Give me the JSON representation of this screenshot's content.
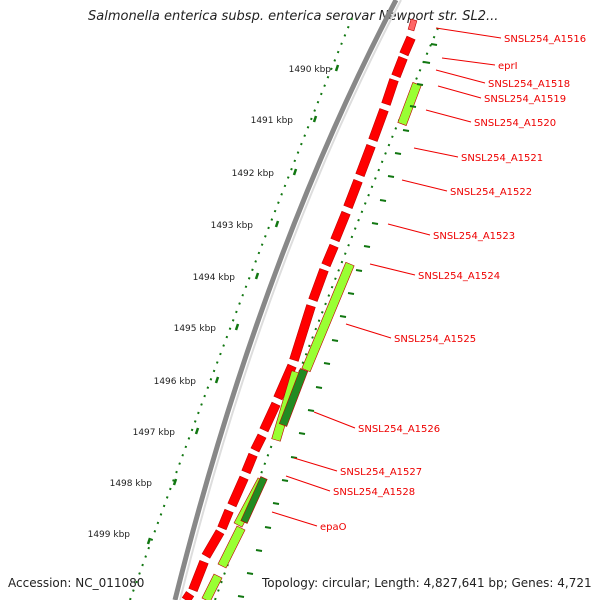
{
  "title": "Salmonella enterica subsp. enterica serovar Newport str. SL2...",
  "footer": {
    "accession": "Accession: NC_011080",
    "summary": "Topology: circular; Length: 4,827,641 bp; Genes: 4,721"
  },
  "ticks": [
    {
      "label": "1490 kbp"
    },
    {
      "label": "1491 kbp"
    },
    {
      "label": "1492 kbp"
    },
    {
      "label": "1493 kbp"
    },
    {
      "label": "1494 kbp"
    },
    {
      "label": "1495 kbp"
    },
    {
      "label": "1496 kbp"
    },
    {
      "label": "1497 kbp"
    },
    {
      "label": "1498 kbp"
    },
    {
      "label": "1499 kbp"
    }
  ],
  "genes": [
    {
      "label": "SNSL254_A1516"
    },
    {
      "label": "eprI"
    },
    {
      "label": "SNSL254_A1518"
    },
    {
      "label": "SNSL254_A1519"
    },
    {
      "label": "SNSL254_A1520"
    },
    {
      "label": "SNSL254_A1521"
    },
    {
      "label": "SNSL254_A1522"
    },
    {
      "label": "SNSL254_A1523"
    },
    {
      "label": "SNSL254_A1524"
    },
    {
      "label": "SNSL254_A1525"
    },
    {
      "label": "SNSL254_A1526"
    },
    {
      "label": "SNSL254_A1527"
    },
    {
      "label": "SNSL254_A1528"
    },
    {
      "label": "epaO"
    }
  ],
  "colors": {
    "cds": "#ff0000",
    "cds_shadow": "#c00000",
    "gene_light": "#99ff33",
    "gene_dark": "#228b22",
    "backbone": "#888888",
    "tick": "#117711",
    "label": "#ee0000"
  }
}
